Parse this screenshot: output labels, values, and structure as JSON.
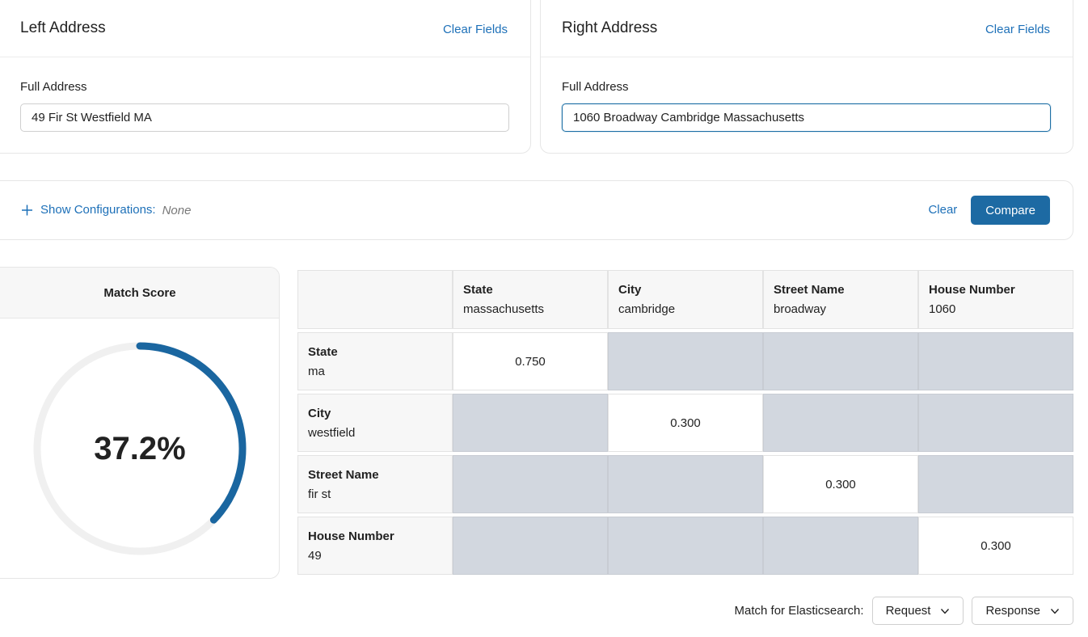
{
  "left_address": {
    "title": "Left Address",
    "clear_label": "Clear Fields",
    "field_label": "Full Address",
    "value": "49 Fir St Westfield MA"
  },
  "right_address": {
    "title": "Right Address",
    "clear_label": "Clear Fields",
    "field_label": "Full Address",
    "value": "1060 Broadway Cambridge Massachusetts"
  },
  "config": {
    "show_label": "Show Configurations:",
    "value": "None",
    "clear_label": "Clear",
    "compare_label": "Compare"
  },
  "score": {
    "title": "Match Score",
    "value_text": "37.2%",
    "fraction": 0.372,
    "accent": "#1a66a0",
    "track": "#f0f0f0"
  },
  "matrix": {
    "columns": [
      {
        "name": "State",
        "value": "massachusetts"
      },
      {
        "name": "City",
        "value": "cambridge"
      },
      {
        "name": "Street Name",
        "value": "broadway"
      },
      {
        "name": "House Number",
        "value": "1060"
      }
    ],
    "rows": [
      {
        "name": "State",
        "value": "ma",
        "score": "0.750"
      },
      {
        "name": "City",
        "value": "westfield",
        "score": "0.300"
      },
      {
        "name": "Street Name",
        "value": "fir st",
        "score": "0.300"
      },
      {
        "name": "House Number",
        "value": "49",
        "score": "0.300"
      }
    ]
  },
  "footer": {
    "label": "Match for Elasticsearch:",
    "request_label": "Request",
    "response_label": "Response"
  }
}
